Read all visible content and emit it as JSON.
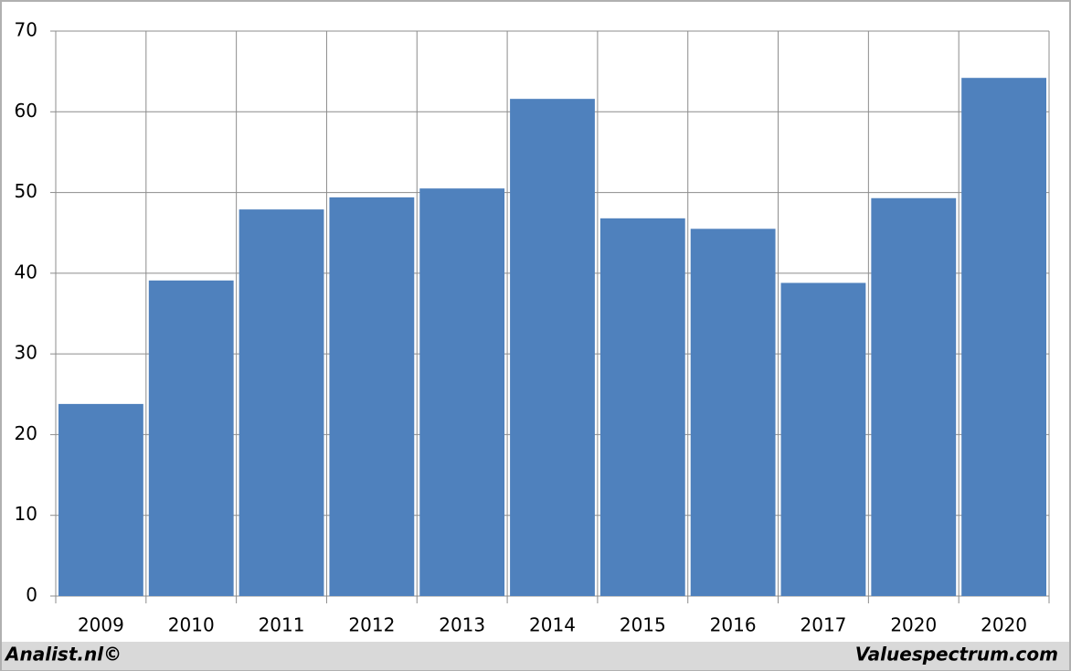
{
  "chart_data": {
    "type": "bar",
    "categories": [
      "2009",
      "2010",
      "2011",
      "2012",
      "2013",
      "2014",
      "2015",
      "2016",
      "2017",
      "2020",
      "2020"
    ],
    "values": [
      23.8,
      39.1,
      47.9,
      49.4,
      50.5,
      61.6,
      46.8,
      45.5,
      38.8,
      49.3,
      64.2
    ],
    "color": "#4f81bd",
    "ylim": [
      0,
      70
    ],
    "yticks": [
      0,
      10,
      20,
      30,
      40,
      50,
      60,
      70
    ],
    "grid": true
  },
  "footer": {
    "left": "Analist.nl©",
    "right": "Valuespectrum.com"
  }
}
